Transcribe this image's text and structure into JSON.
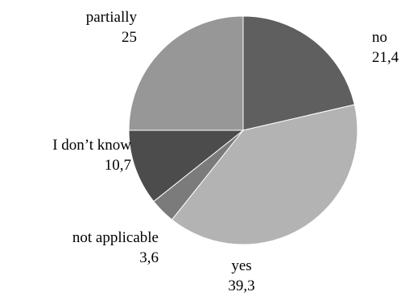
{
  "chart_data": {
    "type": "pie",
    "start_angle_deg": 0,
    "direction": "clockwise",
    "slices": [
      {
        "label": "no",
        "value": 21.4,
        "value_text": "21,4",
        "color": "#5f5f5f"
      },
      {
        "label": "yes",
        "value": 39.3,
        "value_text": "39,3",
        "color": "#b3b3b3"
      },
      {
        "label": "not applicable",
        "value": 3.6,
        "value_text": "3,6",
        "color": "#7b7b7b"
      },
      {
        "label": "I don’t know",
        "value": 10.7,
        "value_text": "10,7",
        "color": "#4c4c4c"
      },
      {
        "label": "partially",
        "value": 25,
        "value_text": "25",
        "color": "#979797"
      }
    ]
  }
}
